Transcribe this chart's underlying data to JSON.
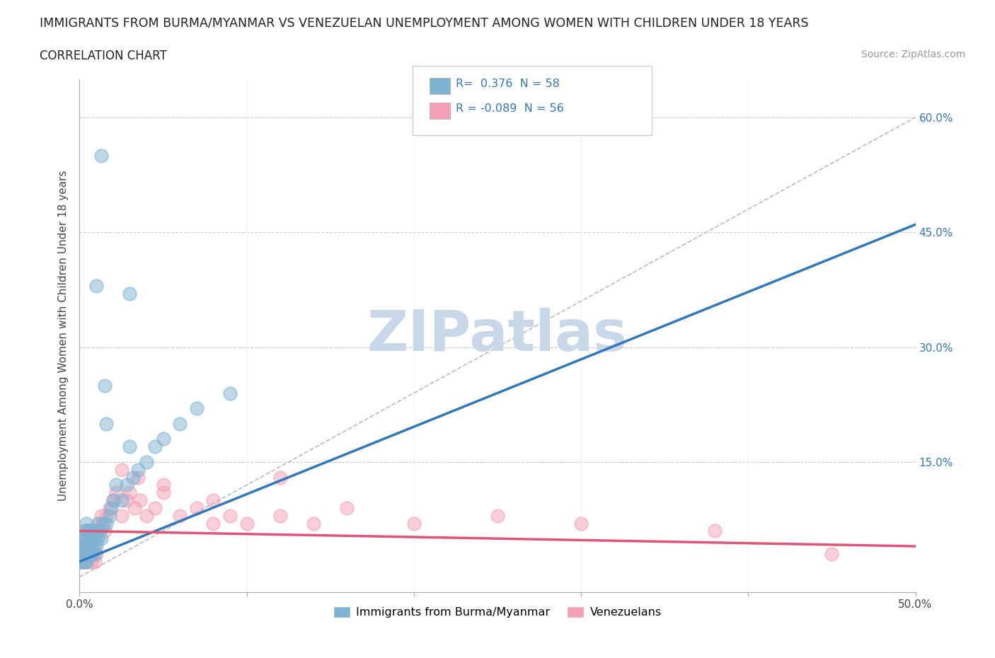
{
  "title": "IMMIGRANTS FROM BURMA/MYANMAR VS VENEZUELAN UNEMPLOYMENT AMONG WOMEN WITH CHILDREN UNDER 18 YEARS",
  "subtitle": "CORRELATION CHART",
  "source": "Source: ZipAtlas.com",
  "ylabel": "Unemployment Among Women with Children Under 18 years",
  "xlim": [
    0.0,
    0.5
  ],
  "ylim": [
    -0.02,
    0.65
  ],
  "xticks": [
    0.0,
    0.1,
    0.2,
    0.3,
    0.4,
    0.5
  ],
  "xticklabels": [
    "0.0%",
    "",
    "",
    "",
    "",
    "50.0%"
  ],
  "yticks": [
    0.0,
    0.15,
    0.3,
    0.45,
    0.6
  ],
  "right_yticklabels": [
    "",
    "15.0%",
    "30.0%",
    "45.0%",
    "60.0%"
  ],
  "watermark": "ZIPatlas",
  "watermark_color": "#c8d8e8",
  "bg_color": "#ffffff",
  "grid_color": "#cccccc",
  "blue_color": "#7fb3d3",
  "pink_color": "#f4a0b5",
  "blue_line_color": "#3377bb",
  "pink_line_color": "#e05575",
  "r_blue": 0.376,
  "n_blue": 58,
  "r_pink": -0.089,
  "n_pink": 56,
  "legend_label_blue": "Immigrants from Burma/Myanmar",
  "legend_label_pink": "Venezuelans",
  "blue_scatter_x": [
    0.0005,
    0.001,
    0.001,
    0.0015,
    0.002,
    0.002,
    0.002,
    0.0025,
    0.003,
    0.003,
    0.003,
    0.003,
    0.0035,
    0.004,
    0.004,
    0.004,
    0.005,
    0.005,
    0.005,
    0.005,
    0.006,
    0.006,
    0.006,
    0.007,
    0.007,
    0.007,
    0.008,
    0.008,
    0.009,
    0.009,
    0.01,
    0.01,
    0.011,
    0.011,
    0.012,
    0.013,
    0.014,
    0.015,
    0.016,
    0.018,
    0.019,
    0.02,
    0.022,
    0.025,
    0.028,
    0.03,
    0.032,
    0.035,
    0.04,
    0.045,
    0.05,
    0.06,
    0.07,
    0.09,
    0.01,
    0.013,
    0.016,
    0.03
  ],
  "blue_scatter_y": [
    0.02,
    0.03,
    0.04,
    0.02,
    0.03,
    0.04,
    0.05,
    0.03,
    0.02,
    0.04,
    0.05,
    0.06,
    0.03,
    0.02,
    0.04,
    0.07,
    0.03,
    0.04,
    0.05,
    0.06,
    0.03,
    0.05,
    0.06,
    0.03,
    0.04,
    0.05,
    0.04,
    0.06,
    0.03,
    0.05,
    0.04,
    0.06,
    0.05,
    0.07,
    0.06,
    0.05,
    0.07,
    0.25,
    0.07,
    0.08,
    0.09,
    0.1,
    0.12,
    0.1,
    0.12,
    0.37,
    0.13,
    0.14,
    0.15,
    0.17,
    0.18,
    0.2,
    0.22,
    0.24,
    0.38,
    0.55,
    0.2,
    0.17
  ],
  "pink_scatter_x": [
    0.001,
    0.001,
    0.002,
    0.002,
    0.003,
    0.003,
    0.003,
    0.004,
    0.004,
    0.005,
    0.005,
    0.005,
    0.006,
    0.006,
    0.007,
    0.007,
    0.008,
    0.008,
    0.009,
    0.009,
    0.01,
    0.01,
    0.011,
    0.012,
    0.013,
    0.015,
    0.016,
    0.018,
    0.02,
    0.022,
    0.025,
    0.028,
    0.03,
    0.033,
    0.036,
    0.04,
    0.045,
    0.05,
    0.06,
    0.07,
    0.08,
    0.09,
    0.1,
    0.12,
    0.14,
    0.16,
    0.2,
    0.25,
    0.3,
    0.38,
    0.45,
    0.025,
    0.035,
    0.05,
    0.08,
    0.12
  ],
  "pink_scatter_y": [
    0.02,
    0.04,
    0.03,
    0.05,
    0.02,
    0.04,
    0.06,
    0.03,
    0.05,
    0.02,
    0.04,
    0.06,
    0.03,
    0.05,
    0.02,
    0.04,
    0.03,
    0.05,
    0.02,
    0.04,
    0.03,
    0.05,
    0.06,
    0.07,
    0.08,
    0.06,
    0.08,
    0.09,
    0.1,
    0.11,
    0.08,
    0.1,
    0.11,
    0.09,
    0.1,
    0.08,
    0.09,
    0.11,
    0.08,
    0.09,
    0.07,
    0.08,
    0.07,
    0.08,
    0.07,
    0.09,
    0.07,
    0.08,
    0.07,
    0.06,
    0.03,
    0.14,
    0.13,
    0.12,
    0.1,
    0.13
  ],
  "blue_trend_x": [
    0.0,
    0.5
  ],
  "blue_trend_y_start": 0.02,
  "blue_trend_y_end": 0.46,
  "pink_trend_y_start": 0.06,
  "pink_trend_y_end": 0.04
}
